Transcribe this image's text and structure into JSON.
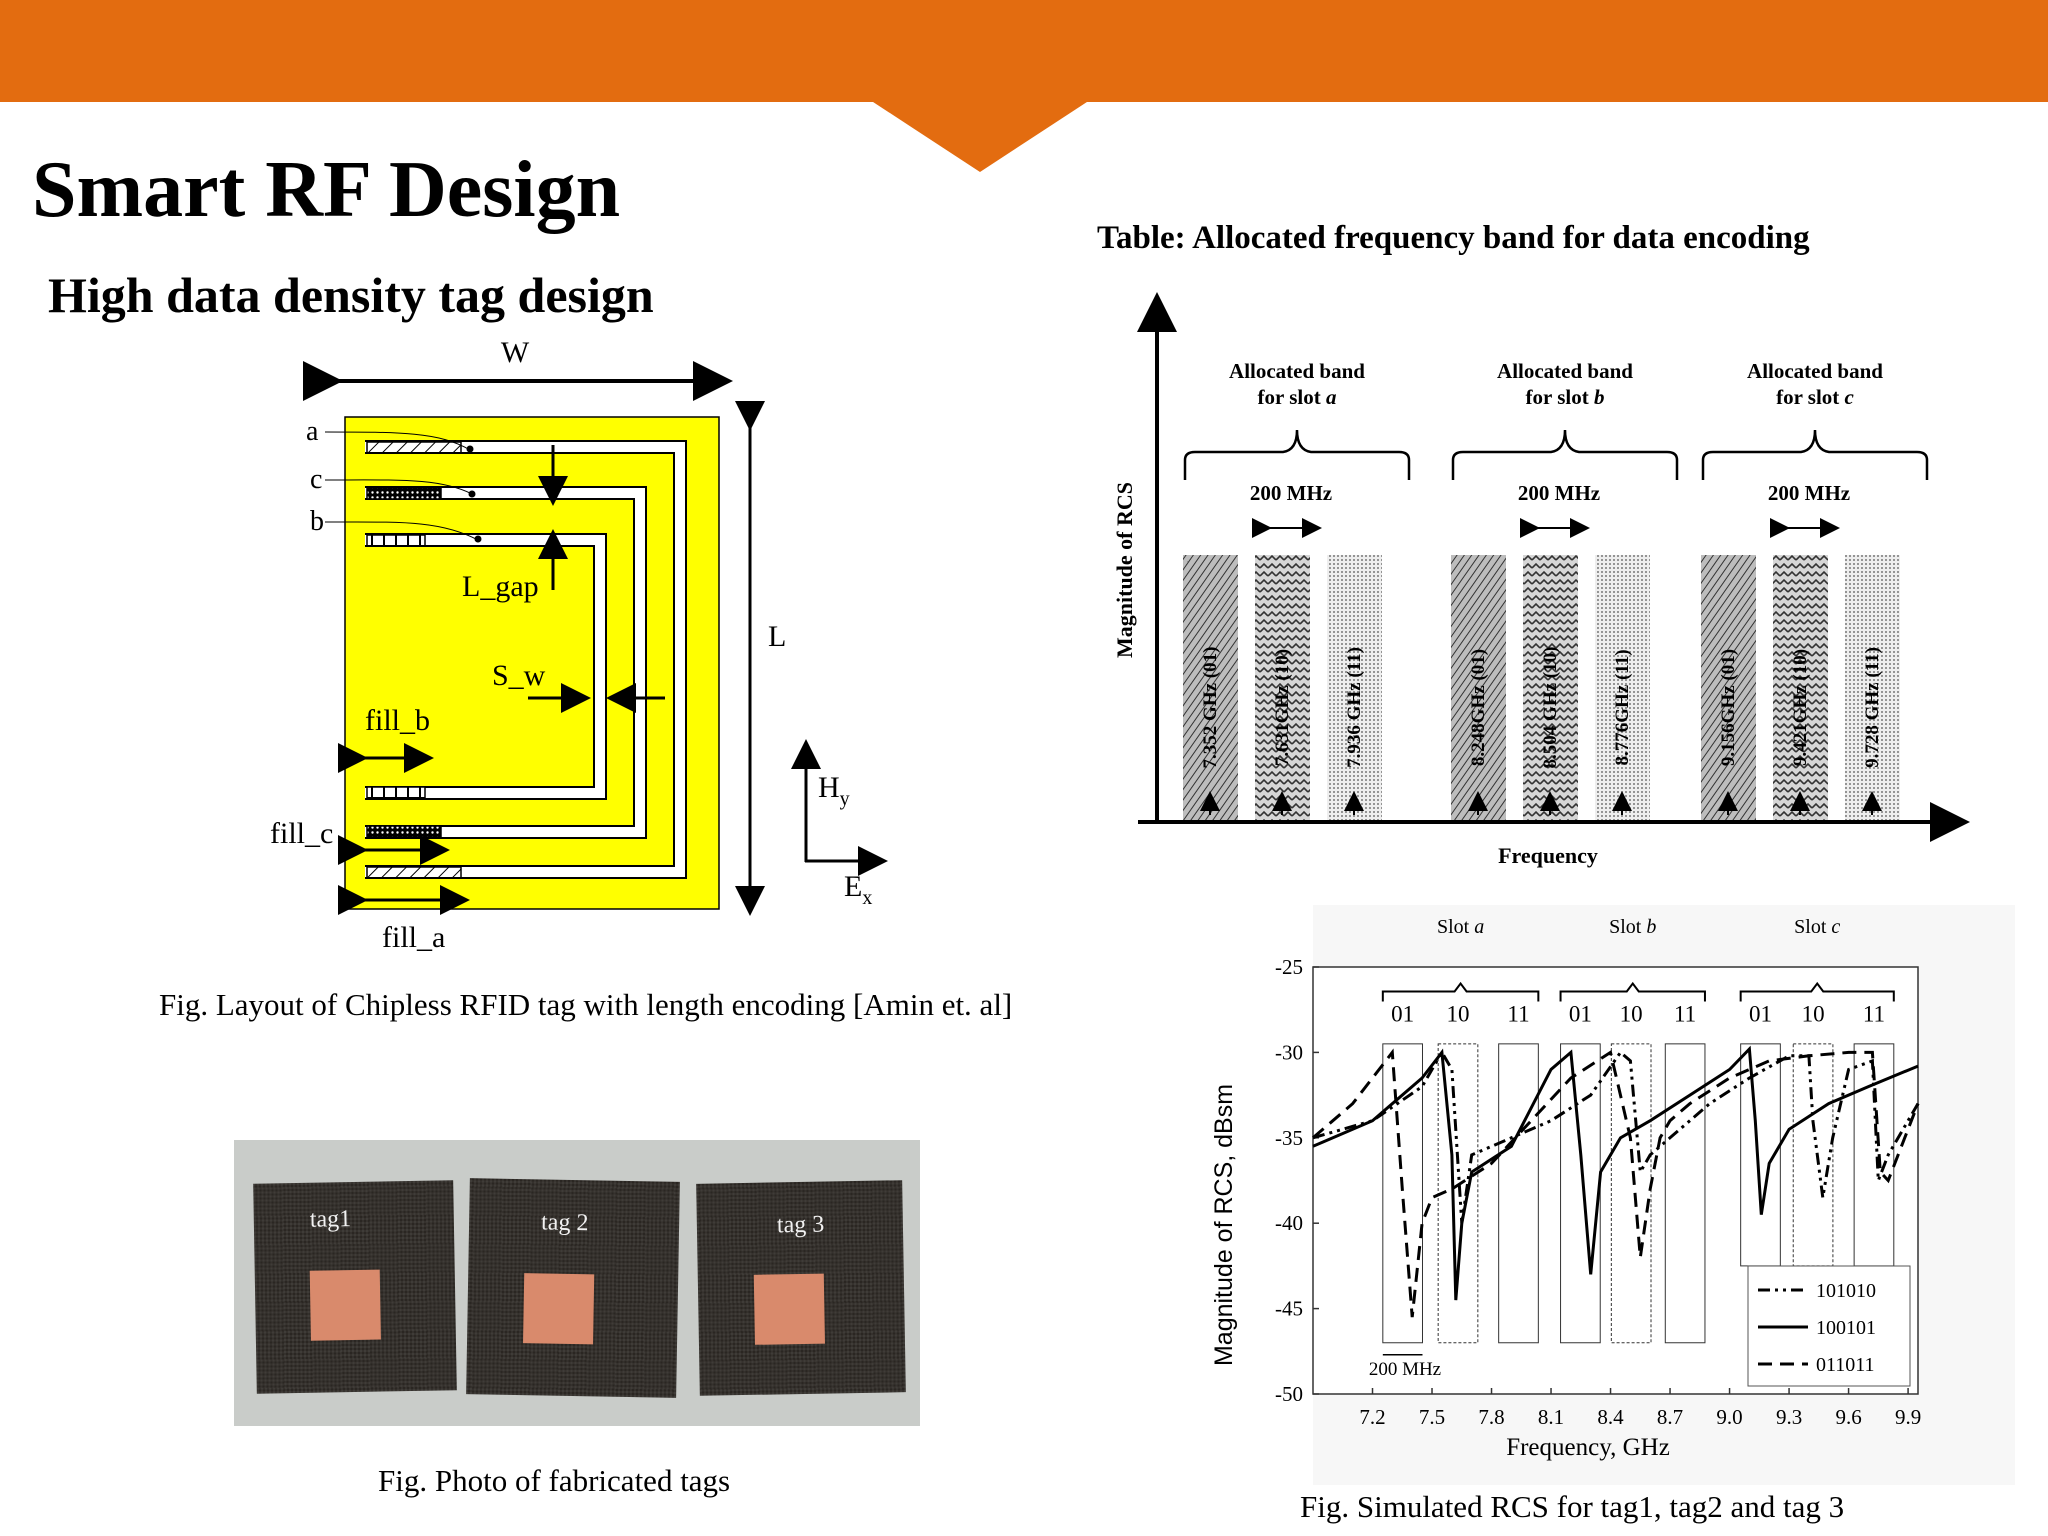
{
  "slide": {
    "title": "Smart RF Design",
    "subtitle": "High data density tag design",
    "colors": {
      "banner": "#e36c10",
      "tag_fill": "#ffff00"
    }
  },
  "layout_fig": {
    "labels": {
      "W": "W",
      "L": "L",
      "a": "a",
      "b": "b",
      "c": "c",
      "L_gap": "L_gap",
      "S_w": "S_w",
      "fill_a": "fill_a",
      "fill_b": "fill_b",
      "fill_c": "fill_c",
      "Hy": "H",
      "Hy_sub": "y",
      "Ex": "E",
      "Ex_sub": "x"
    },
    "caption": "Fig. Layout of Chipless RFID tag with length encoding [Amin et. al]"
  },
  "photo_fig": {
    "tags": [
      "tag1",
      "tag 2",
      "tag 3"
    ],
    "caption": "Fig. Photo of fabricated tags"
  },
  "band_fig": {
    "title": "Table: Allocated frequency band for data encoding",
    "ylabel": "Magnitude of RCS",
    "xlabel": "Frequency",
    "slots": [
      {
        "label_line1": "Allocated band",
        "label_line2": "for slot ",
        "slot": "a",
        "width": "200 MHz",
        "bars": [
          "7.352 GHz (01)",
          "7.631GHz (10)",
          "7.936 GHz (11)"
        ]
      },
      {
        "label_line1": "Allocated band",
        "label_line2": "for slot ",
        "slot": "b",
        "width": "200 MHz",
        "bars": [
          "8.248GHz (01)",
          "8.504 GHz (10)",
          "8.776GHz (11)"
        ]
      },
      {
        "label_line1": "Allocated band",
        "label_line2": "for slot ",
        "slot": "c",
        "width": "200 MHz",
        "bars": [
          "9.156GHz (01)",
          "9.421GHz (10)",
          "9.728 GHz (11)"
        ]
      }
    ]
  },
  "chart_data": {
    "type": "line",
    "title": "",
    "xlabel": "Frequency, GHz",
    "ylabel": "Magnitude of RCS, dBsm",
    "xlim": [
      6.9,
      9.95
    ],
    "ylim": [
      -50,
      -25
    ],
    "xticks": [
      "7.2",
      "7.5",
      "7.8",
      "8.1",
      "8.4",
      "8.7",
      "9.0",
      "9.3",
      "9.6",
      "9.9"
    ],
    "yticks": [
      "-25",
      "-30",
      "-35",
      "-40",
      "-45",
      "-50"
    ],
    "slot_labels": [
      "Slot a",
      "Slot b",
      "Slot c"
    ],
    "code_labels": [
      "01",
      "10",
      "11",
      "01",
      "10",
      "11",
      "01",
      "10",
      "11"
    ],
    "bandwidth_label": "200 MHz",
    "series": [
      {
        "name": "101010",
        "style": "dashdotdot",
        "x": [
          6.9,
          7.2,
          7.45,
          7.55,
          7.6,
          7.65,
          7.7,
          7.9,
          8.1,
          8.3,
          8.45,
          8.5,
          8.55,
          8.6,
          8.7,
          8.9,
          9.1,
          9.3,
          9.4,
          9.42,
          9.47,
          9.52,
          9.6,
          9.72,
          9.75,
          9.8,
          9.95
        ],
        "y": [
          -35,
          -34,
          -32,
          -30,
          -31,
          -40,
          -36,
          -35,
          -34,
          -32.5,
          -30,
          -30.5,
          -37,
          -36,
          -35,
          -33,
          -31.5,
          -30.2,
          -30.2,
          -34,
          -38.5,
          -35,
          -31,
          -30.5,
          -37.5,
          -36,
          -33
        ]
      },
      {
        "name": "100101",
        "style": "solid",
        "x": [
          6.9,
          7.2,
          7.45,
          7.55,
          7.6,
          7.62,
          7.65,
          7.7,
          7.9,
          8.1,
          8.2,
          8.25,
          8.3,
          8.35,
          8.45,
          8.6,
          8.8,
          9.0,
          9.1,
          9.13,
          9.16,
          9.2,
          9.3,
          9.5,
          9.7,
          9.95
        ],
        "y": [
          -35.5,
          -34,
          -31.5,
          -30,
          -36,
          -44.5,
          -40,
          -37,
          -35.5,
          -31,
          -30,
          -36,
          -43,
          -37,
          -35,
          -34,
          -32.5,
          -31,
          -29.8,
          -34,
          -39.5,
          -36.5,
          -34.5,
          -33,
          -32,
          -30.8
        ]
      },
      {
        "name": "011011",
        "style": "dashed",
        "x": [
          6.9,
          7.1,
          7.2,
          7.3,
          7.35,
          7.4,
          7.45,
          7.5,
          7.6,
          7.8,
          8.0,
          8.2,
          8.4,
          8.5,
          8.55,
          8.6,
          8.65,
          8.7,
          8.8,
          9.0,
          9.2,
          9.4,
          9.6,
          9.72,
          9.76,
          9.8,
          9.95
        ],
        "y": [
          -35,
          -33,
          -31.5,
          -30,
          -38,
          -45.5,
          -40,
          -38.5,
          -38,
          -36.5,
          -34,
          -31.5,
          -30,
          -35,
          -42,
          -38,
          -35,
          -34,
          -33,
          -31.5,
          -30.5,
          -30.2,
          -30,
          -30,
          -37,
          -37.5,
          -33
        ]
      }
    ],
    "caption": "Fig. Simulated RCS for tag1, tag2 and tag 3"
  }
}
